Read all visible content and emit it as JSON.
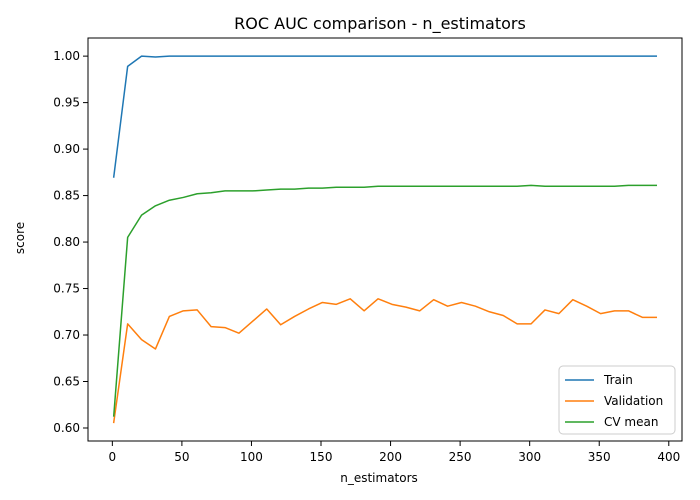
{
  "chart_data": {
    "type": "line",
    "title": "ROC AUC comparison - n_estimators",
    "xlabel": "n_estimators",
    "ylabel": "score",
    "xlim": [
      -17.5,
      409.5
    ],
    "ylim": [
      0.586,
      1.0195
    ],
    "xticks": [
      0,
      50,
      100,
      150,
      200,
      250,
      300,
      350,
      400
    ],
    "xtick_labels": [
      "0",
      "50",
      "100",
      "150",
      "200",
      "250",
      "300",
      "350",
      "400"
    ],
    "yticks": [
      0.6,
      0.65,
      0.7,
      0.75,
      0.8,
      0.85,
      0.9,
      0.95,
      1.0
    ],
    "ytick_labels": [
      "0.60",
      "0.65",
      "0.70",
      "0.75",
      "0.80",
      "0.85",
      "0.90",
      "0.95",
      "1.00"
    ],
    "grid": false,
    "legend_position": "lower-right",
    "x": [
      1,
      11,
      21,
      31,
      41,
      51,
      61,
      71,
      81,
      91,
      101,
      111,
      121,
      131,
      141,
      151,
      161,
      171,
      181,
      191,
      201,
      211,
      221,
      231,
      241,
      251,
      261,
      271,
      281,
      291,
      301,
      311,
      321,
      331,
      341,
      351,
      361,
      371,
      381,
      391
    ],
    "series": [
      {
        "name": "Train",
        "color": "#1f77b4",
        "values": [
          0.87,
          0.989,
          1.0,
          0.999,
          1.0,
          1.0,
          1.0,
          1.0,
          1.0,
          1.0,
          1.0,
          1.0,
          1.0,
          1.0,
          1.0,
          1.0,
          1.0,
          1.0,
          1.0,
          1.0,
          1.0,
          1.0,
          1.0,
          1.0,
          1.0,
          1.0,
          1.0,
          1.0,
          1.0,
          1.0,
          1.0,
          1.0,
          1.0,
          1.0,
          1.0,
          1.0,
          1.0,
          1.0,
          1.0,
          1.0
        ]
      },
      {
        "name": "Validation",
        "color": "#ff7f0e",
        "values": [
          0.606,
          0.712,
          0.695,
          0.685,
          0.72,
          0.726,
          0.727,
          0.709,
          0.708,
          0.702,
          0.715,
          0.728,
          0.711,
          0.72,
          0.728,
          0.735,
          0.733,
          0.739,
          0.726,
          0.739,
          0.733,
          0.73,
          0.726,
          0.738,
          0.731,
          0.735,
          0.731,
          0.725,
          0.721,
          0.712,
          0.712,
          0.727,
          0.723,
          0.738,
          0.731,
          0.723,
          0.726,
          0.726,
          0.719,
          0.719
        ]
      },
      {
        "name": "CV mean",
        "color": "#2ca02c",
        "values": [
          0.613,
          0.805,
          0.829,
          0.839,
          0.845,
          0.848,
          0.852,
          0.853,
          0.855,
          0.855,
          0.855,
          0.856,
          0.857,
          0.857,
          0.858,
          0.858,
          0.859,
          0.859,
          0.859,
          0.86,
          0.86,
          0.86,
          0.86,
          0.86,
          0.86,
          0.86,
          0.86,
          0.86,
          0.86,
          0.86,
          0.861,
          0.86,
          0.86,
          0.86,
          0.86,
          0.86,
          0.86,
          0.861,
          0.861,
          0.861
        ]
      }
    ]
  }
}
